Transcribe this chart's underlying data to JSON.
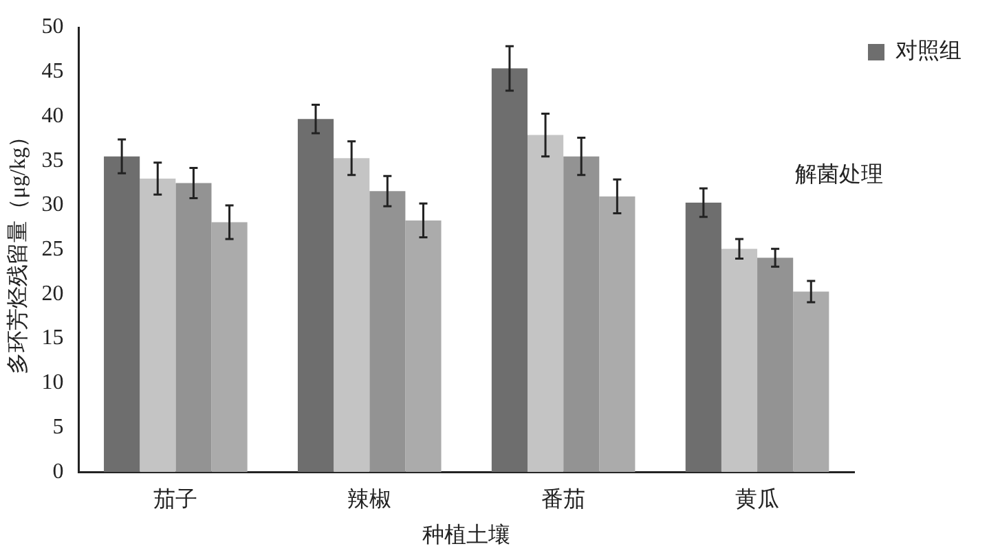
{
  "chart_data": {
    "type": "bar",
    "xlabel": "种植土壤",
    "ylabel": "多环芳烃残留量（μg/kg）",
    "categories": [
      "茄子",
      "辣椒",
      "番茄",
      "黄瓜"
    ],
    "series": [
      {
        "name": "对照组",
        "color": "#6e6e6e",
        "values": [
          35.5,
          39.7,
          45.4,
          30.3
        ],
        "errors": [
          1.9,
          1.6,
          2.5,
          1.6
        ]
      },
      {
        "color": "#c4c4c4",
        "values": [
          33.0,
          35.3,
          37.9,
          25.1
        ],
        "errors": [
          1.8,
          1.9,
          2.4,
          1.1
        ]
      },
      {
        "color": "#939393",
        "values": [
          32.5,
          31.6,
          35.5,
          24.1
        ],
        "errors": [
          1.7,
          1.7,
          2.1,
          1.0
        ]
      },
      {
        "color": "#ababab",
        "values": [
          28.1,
          28.3,
          31.0,
          20.3
        ],
        "errors": [
          1.9,
          1.9,
          1.9,
          1.2
        ]
      }
    ],
    "ylim": [
      0,
      50
    ],
    "yticks": [
      0,
      5,
      10,
      15,
      20,
      25,
      30,
      35,
      40,
      45,
      50
    ],
    "grid": false,
    "legend": "top right",
    "annotations": [
      "解菌处理"
    ]
  }
}
